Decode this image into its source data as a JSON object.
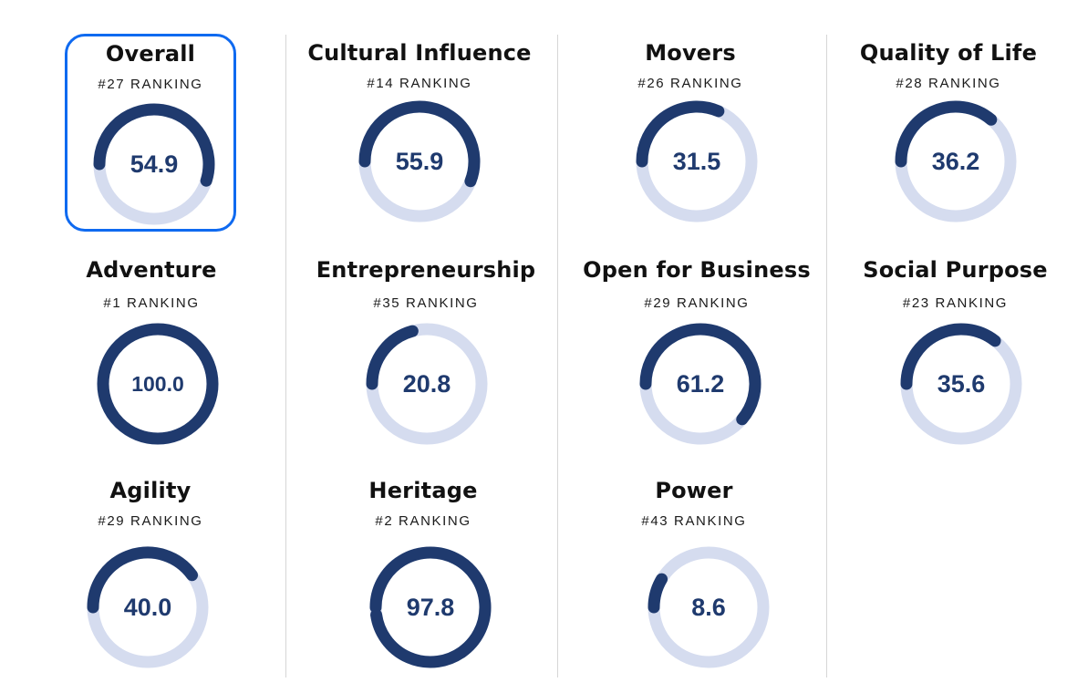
{
  "rank_prefix": "#",
  "rank_suffix": "RANKING",
  "colors": {
    "accent": "#1f3a6e",
    "track": "#d5dcef",
    "selected_border": "#0f6af0",
    "divider": "#d6d6d6"
  },
  "selected_card": "overall",
  "cards": {
    "overall": {
      "title": "Overall",
      "rank": "#27 RANKING",
      "score": "54.9",
      "value": 54.9
    },
    "cultural_influence": {
      "title": "Cultural Influence",
      "rank": "#14 RANKING",
      "score": "55.9",
      "value": 55.9
    },
    "movers": {
      "title": "Movers",
      "rank": "#26 RANKING",
      "score": "31.5",
      "value": 31.5
    },
    "quality_of_life": {
      "title": "Quality of Life",
      "rank": "#28 RANKING",
      "score": "36.2",
      "value": 36.2
    },
    "adventure": {
      "title": "Adventure",
      "rank": "#1 RANKING",
      "score": "100.0",
      "value": 100.0
    },
    "entrepreneurship": {
      "title": "Entrepreneurship",
      "rank": "#35 RANKING",
      "score": "20.8",
      "value": 20.8
    },
    "open_for_business": {
      "title": "Open for Business",
      "rank": "#29 RANKING",
      "score": "61.2",
      "value": 61.2
    },
    "social_purpose": {
      "title": "Social Purpose",
      "rank": "#23 RANKING",
      "score": "35.6",
      "value": 35.6
    },
    "agility": {
      "title": "Agility",
      "rank": "#29 RANKING",
      "score": "40.0",
      "value": 40.0
    },
    "heritage": {
      "title": "Heritage",
      "rank": "#2 RANKING",
      "score": "97.8",
      "value": 97.8
    },
    "power": {
      "title": "Power",
      "rank": "#43 RANKING",
      "score": "8.6",
      "value": 8.6
    }
  }
}
